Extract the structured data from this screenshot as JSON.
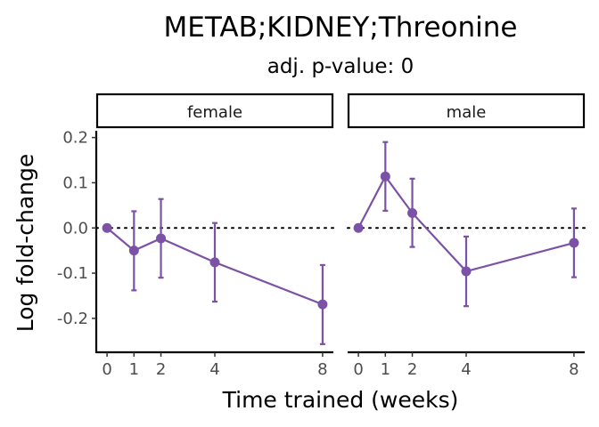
{
  "chart_data": {
    "type": "line",
    "title": "METAB;KIDNEY;Threonine",
    "subtitle": "adj. p-value: 0",
    "xlabel": "Time trained (weeks)",
    "ylabel": "Log fold-change",
    "xlim": [
      -0.4,
      8.4
    ],
    "ylim": [
      -0.275,
      0.215
    ],
    "x_ticks": [
      0,
      1,
      2,
      4,
      8
    ],
    "y_ticks": [
      0.2,
      0.1,
      0.0,
      -0.1,
      -0.2
    ],
    "y_tick_labels": [
      "0.2",
      "0.1",
      "0.0",
      "-0.1",
      "-0.2"
    ],
    "reference_line": 0,
    "grid": false,
    "color": "#7b52a6",
    "panels": [
      {
        "strip": "female",
        "x": [
          0,
          1,
          2,
          4,
          8
        ],
        "y": [
          0.0,
          -0.05,
          -0.023,
          -0.076,
          -0.169
        ],
        "lower": [
          0.0,
          -0.138,
          -0.11,
          -0.163,
          -0.257
        ],
        "upper": [
          0.0,
          0.037,
          0.064,
          0.011,
          -0.082
        ]
      },
      {
        "strip": "male",
        "x": [
          0,
          1,
          2,
          4,
          8
        ],
        "y": [
          0.0,
          0.114,
          0.033,
          -0.096,
          -0.033
        ],
        "lower": [
          0.0,
          0.038,
          -0.042,
          -0.173,
          -0.109
        ],
        "upper": [
          0.0,
          0.19,
          0.109,
          -0.019,
          0.043
        ]
      }
    ]
  }
}
